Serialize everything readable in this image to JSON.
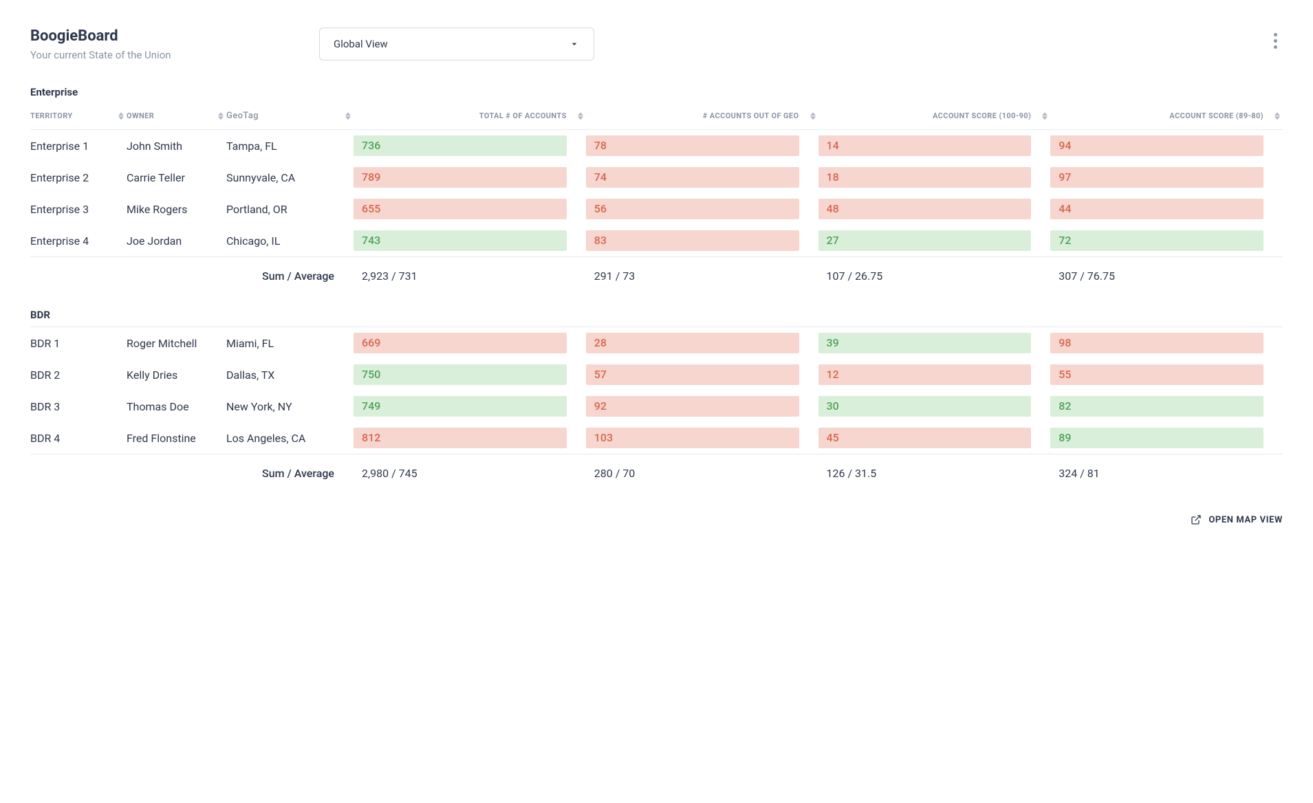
{
  "header": {
    "title": "BoogieBoard",
    "subtitle": "Your current State of the Union",
    "view_selector": {
      "selected": "Global View"
    }
  },
  "colors": {
    "pill_green_bg": "#d9efd9",
    "pill_green_text": "#4fa35a",
    "pill_red_bg": "#f6d6cf",
    "pill_red_text": "#d9664d",
    "text_primary": "#2e384d",
    "text_muted": "#8a94a6",
    "border": "#e6e9ef"
  },
  "columns": [
    {
      "key": "territory",
      "label": "TERRITORY",
      "sortable": true
    },
    {
      "key": "owner",
      "label": "OWNER",
      "sortable": true
    },
    {
      "key": "geotag",
      "label": "GeoTag",
      "sortable": true
    },
    {
      "key": "total_accounts",
      "label": "TOTAL # OF ACCOUNTS",
      "sortable": true
    },
    {
      "key": "out_of_geo",
      "label": "# ACCOUNTS OUT OF GEO",
      "sortable": true
    },
    {
      "key": "score_100_90",
      "label": "ACCOUNT SCORE (100-90)",
      "sortable": true
    },
    {
      "key": "score_89_80",
      "label": "ACCOUNT SCORE (89-80)",
      "sortable": true
    }
  ],
  "summary_label": "Sum / Average",
  "sections": [
    {
      "title": "Enterprise",
      "rows": [
        {
          "territory": "Enterprise 1",
          "owner": "John Smith",
          "geotag": "Tampa, FL",
          "cells": [
            {
              "value": "736",
              "tone": "green"
            },
            {
              "value": "78",
              "tone": "red"
            },
            {
              "value": "14",
              "tone": "red"
            },
            {
              "value": "94",
              "tone": "red"
            }
          ]
        },
        {
          "territory": "Enterprise 2",
          "owner": "Carrie Teller",
          "geotag": "Sunnyvale, CA",
          "cells": [
            {
              "value": "789",
              "tone": "red"
            },
            {
              "value": "74",
              "tone": "red"
            },
            {
              "value": "18",
              "tone": "red"
            },
            {
              "value": "97",
              "tone": "red"
            }
          ]
        },
        {
          "territory": "Enterprise 3",
          "owner": "Mike Rogers",
          "geotag": "Portland, OR",
          "cells": [
            {
              "value": "655",
              "tone": "red"
            },
            {
              "value": "56",
              "tone": "red"
            },
            {
              "value": "48",
              "tone": "red"
            },
            {
              "value": "44",
              "tone": "red"
            }
          ]
        },
        {
          "territory": "Enterprise 4",
          "owner": "Joe Jordan",
          "geotag": "Chicago, IL",
          "cells": [
            {
              "value": "743",
              "tone": "green"
            },
            {
              "value": "83",
              "tone": "red"
            },
            {
              "value": "27",
              "tone": "green"
            },
            {
              "value": "72",
              "tone": "green"
            }
          ]
        }
      ],
      "summary": [
        "2,923 / 731",
        "291 / 73",
        "107 / 26.75",
        "307 / 76.75"
      ]
    },
    {
      "title": "BDR",
      "rows": [
        {
          "territory": "BDR 1",
          "owner": "Roger Mitchell",
          "geotag": "Miami, FL",
          "cells": [
            {
              "value": "669",
              "tone": "red"
            },
            {
              "value": "28",
              "tone": "red"
            },
            {
              "value": "39",
              "tone": "green"
            },
            {
              "value": "98",
              "tone": "red"
            }
          ]
        },
        {
          "territory": "BDR 2",
          "owner": "Kelly Dries",
          "geotag": "Dallas, TX",
          "cells": [
            {
              "value": "750",
              "tone": "green"
            },
            {
              "value": "57",
              "tone": "red"
            },
            {
              "value": "12",
              "tone": "red"
            },
            {
              "value": "55",
              "tone": "red"
            }
          ]
        },
        {
          "territory": "BDR 3",
          "owner": "Thomas Doe",
          "geotag": "New York, NY",
          "cells": [
            {
              "value": "749",
              "tone": "green"
            },
            {
              "value": "92",
              "tone": "red"
            },
            {
              "value": "30",
              "tone": "green"
            },
            {
              "value": "82",
              "tone": "green"
            }
          ]
        },
        {
          "territory": "BDR 4",
          "owner": "Fred Flonstine",
          "geotag": "Los Angeles, CA",
          "cells": [
            {
              "value": "812",
              "tone": "red"
            },
            {
              "value": "103",
              "tone": "red"
            },
            {
              "value": "45",
              "tone": "red"
            },
            {
              "value": "89",
              "tone": "green"
            }
          ]
        }
      ],
      "summary": [
        "2,980 / 745",
        "280 / 70",
        "126 / 31.5",
        "324 / 81"
      ]
    }
  ],
  "footer": {
    "open_map_label": "OPEN MAP VIEW"
  }
}
